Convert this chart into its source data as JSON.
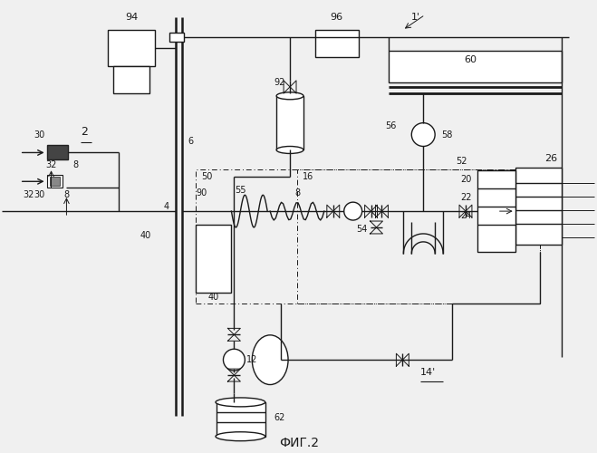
{
  "title": "ФИГ.2",
  "bg_color": "#f0f0f0",
  "line_color": "#1a1a1a",
  "fig_width": 6.59,
  "fig_height": 5.0
}
